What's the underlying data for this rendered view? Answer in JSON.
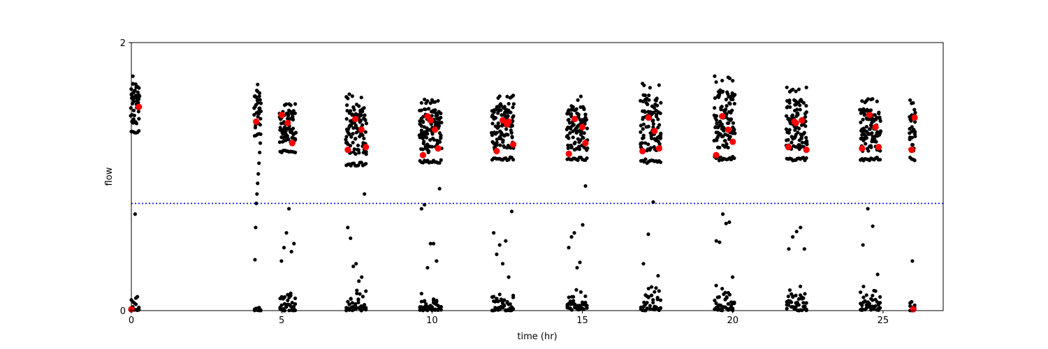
{
  "chart_data": {
    "type": "scatter",
    "title": "",
    "xlabel": "time (hr)",
    "ylabel": "flow",
    "xlim": [
      0,
      27
    ],
    "ylim": [
      0,
      2
    ],
    "xticks": [
      0,
      5,
      10,
      15,
      20,
      25
    ],
    "xtick_labels": [
      "0",
      "5",
      "10",
      "15",
      "20",
      "25"
    ],
    "yticks": [
      0,
      2
    ],
    "ytick_labels": [
      "0",
      "2"
    ],
    "grid": false,
    "legend": "none",
    "threshold": {
      "y": 0.8,
      "color": "#0000ff",
      "style": "dotted"
    },
    "colors": {
      "samples": "#000000",
      "markers": "#ff0000",
      "axes": "#000000"
    },
    "series": [
      {
        "marker": "small black dots",
        "clusters": [
          {
            "x": [
              0.0,
              0.25
            ],
            "high": [
              1.32,
              1.76
            ],
            "low": [
              0.0,
              0.2
            ],
            "mid": [
              0.72
            ]
          },
          {
            "x": [
              4.1,
              4.3
            ],
            "high": [
              1.3,
              1.72
            ],
            "low": [
              0.0,
              0.03
            ],
            "mid": [
              0.38,
              0.62,
              0.8,
              0.87,
              0.95,
              1.02,
              1.1,
              1.18,
              1.25
            ]
          },
          {
            "x": [
              4.95,
              5.45
            ],
            "high": [
              1.18,
              1.55
            ],
            "low": [
              0.0,
              0.16
            ],
            "mid": [
              0.37,
              0.47,
              0.58,
              0.76,
              0.44,
              0.5
            ]
          },
          {
            "x": [
              7.15,
              7.8
            ],
            "high": [
              1.08,
              1.62
            ],
            "low": [
              0.0,
              0.18
            ],
            "mid": [
              0.62,
              0.54,
              0.33,
              0.35,
              0.22,
              0.25,
              0.87
            ]
          },
          {
            "x": [
              9.6,
              10.3
            ],
            "high": [
              1.1,
              1.58
            ],
            "low": [
              0.0,
              0.18
            ],
            "mid": [
              0.76,
              0.79,
              0.32,
              0.5,
              0.5,
              0.37,
              0.91
            ]
          },
          {
            "x": [
              12.0,
              12.7
            ],
            "high": [
              1.12,
              1.62
            ],
            "low": [
              0.0,
              0.18
            ],
            "mid": [
              0.58,
              0.42,
              0.49,
              0.35,
              0.52,
              0.25,
              0.74
            ]
          },
          {
            "x": [
              14.5,
              15.15
            ],
            "high": [
              1.12,
              1.6
            ],
            "low": [
              0.0,
              0.2
            ],
            "mid": [
              0.47,
              0.55,
              0.58,
              0.32,
              0.36,
              0.64,
              0.93
            ]
          },
          {
            "x": [
              16.95,
              17.6
            ],
            "high": [
              1.1,
              1.7
            ],
            "low": [
              0.0,
              0.2
            ],
            "mid": [
              0.35,
              0.57,
              0.81,
              0.26
            ]
          },
          {
            "x": [
              19.4,
              20.05
            ],
            "high": [
              1.12,
              1.75
            ],
            "low": [
              0.0,
              0.2
            ],
            "mid": [
              0.52,
              0.51,
              0.72,
              0.65,
              0.66,
              0.25
            ]
          },
          {
            "x": [
              21.8,
              22.45
            ],
            "high": [
              1.12,
              1.67
            ],
            "low": [
              0.0,
              0.22
            ],
            "mid": [
              0.46,
              0.55,
              0.59,
              0.62,
              0.46
            ]
          },
          {
            "x": [
              24.25,
              24.9
            ],
            "high": [
              1.12,
              1.58
            ],
            "low": [
              0.0,
              0.24
            ],
            "mid": [
              0.49,
              0.76,
              0.63,
              0.27
            ]
          },
          {
            "x": [
              25.9,
              26.05
            ],
            "high": [
              1.12,
              1.58
            ],
            "low": [
              0.0,
              0.2
            ],
            "mid": [
              0.37
            ]
          }
        ]
      },
      {
        "marker": "red dots",
        "x": [
          0.0,
          0.25,
          4.15,
          5.0,
          5.2,
          5.35,
          7.2,
          7.45,
          7.65,
          7.8,
          9.7,
          9.85,
          9.95,
          10.1,
          10.2,
          12.15,
          12.35,
          12.5,
          12.55,
          12.7,
          14.55,
          14.75,
          15.0,
          15.1,
          17.0,
          17.2,
          17.4,
          17.55,
          19.45,
          19.65,
          19.85,
          20.0,
          21.85,
          22.05,
          22.1,
          22.3,
          22.45,
          24.3,
          24.55,
          24.75,
          24.85,
          25.95,
          26.0,
          26.05
        ],
        "y": [
          0.01,
          1.52,
          1.41,
          1.46,
          1.4,
          1.25,
          1.2,
          1.43,
          1.35,
          1.22,
          1.16,
          1.45,
          1.42,
          1.35,
          1.21,
          1.19,
          1.42,
          1.39,
          1.41,
          1.24,
          1.17,
          1.43,
          1.37,
          1.25,
          1.19,
          1.44,
          1.34,
          1.21,
          1.16,
          1.45,
          1.35,
          1.26,
          1.22,
          1.41,
          1.4,
          1.42,
          1.2,
          1.21,
          1.46,
          1.37,
          1.22,
          1.2,
          0.01,
          1.44
        ]
      }
    ]
  }
}
